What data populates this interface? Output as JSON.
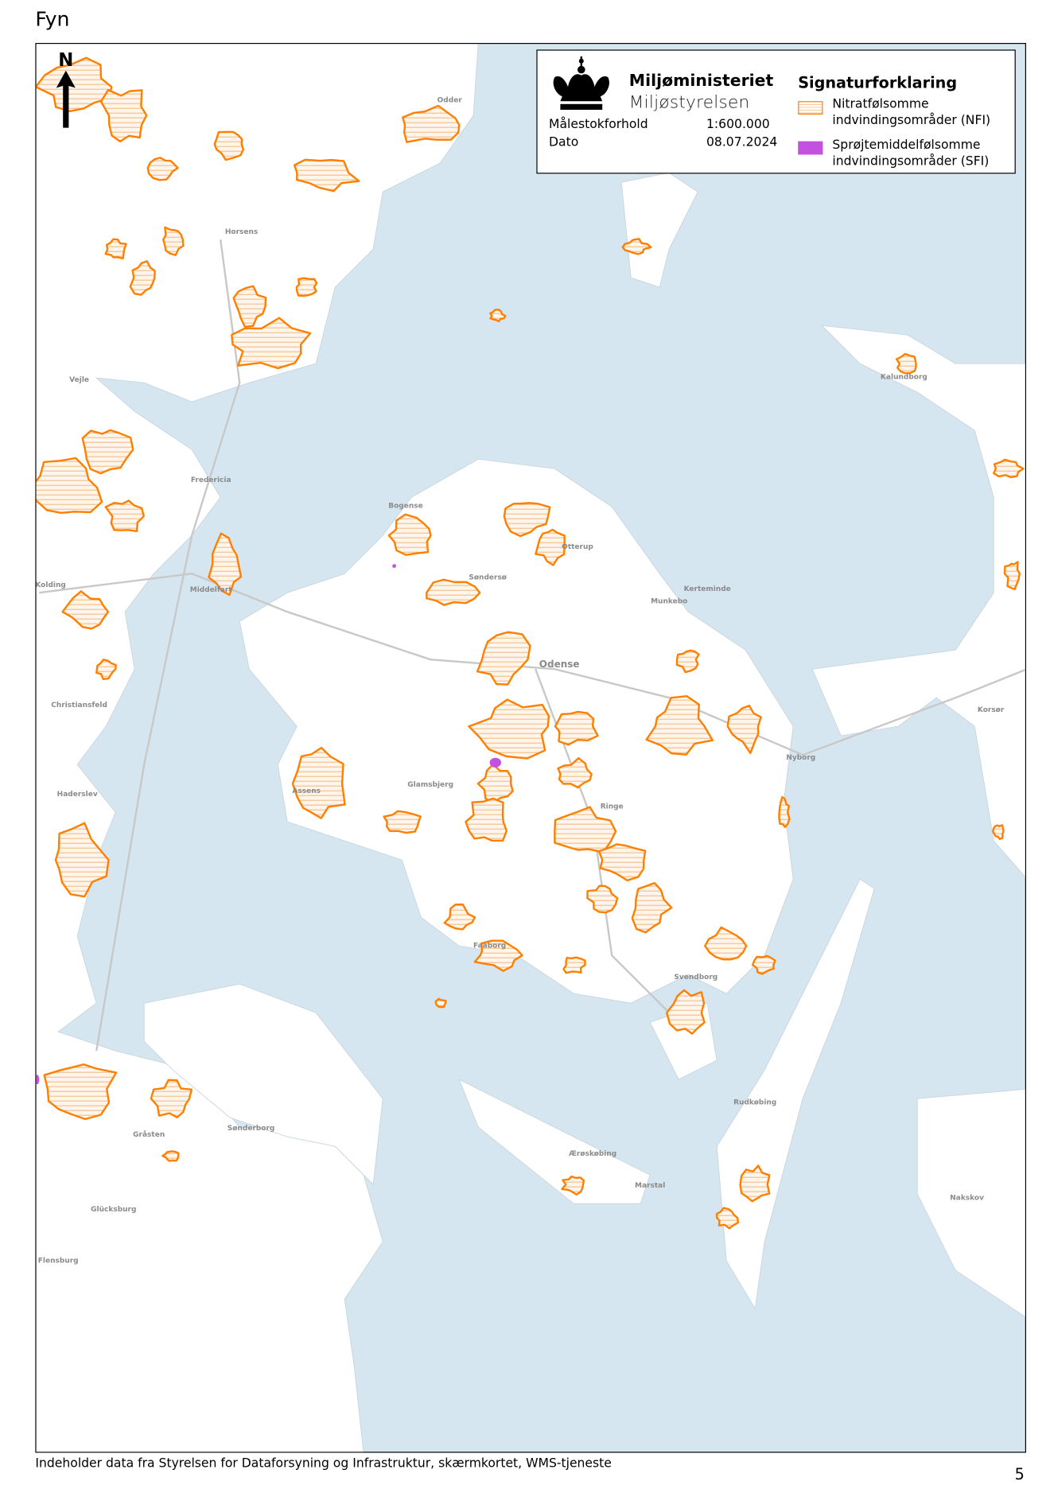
{
  "title": "Fyn",
  "north_label": "N",
  "legend": {
    "organization": "Miljøministeriet",
    "agency": "Miljøstyrelsen",
    "scale_label": "Målestokforhold",
    "scale_value": "1:600.000",
    "date_label": "Dato",
    "date_value": "08.07.2024",
    "heading": "Signaturforklaring",
    "items": [
      {
        "label_line1": "Nitratfølsomme",
        "label_line2": "indvindingsområder (NFI)",
        "color": "#ff7f00"
      },
      {
        "label_line1": "Sprøjtemiddelfølsomme",
        "label_line2": "indvindingsområder (SFI)",
        "color": "#c450e0"
      }
    ]
  },
  "map": {
    "sea_color": "#d6e6f0",
    "land_color": "#ffffff",
    "nfi_color": "#ff7f00",
    "sfi_color": "#c450e0",
    "places": [
      "Odense",
      "Horsens",
      "Vejle",
      "Fredericia",
      "Middelfart",
      "Kolding",
      "Haderslev",
      "Sønderborg",
      "Flensburg",
      "Nyborg",
      "Svendborg",
      "Faaborg",
      "Assens",
      "Bogense",
      "Otterup",
      "Kerteminde",
      "Ringe",
      "Kalundborg",
      "Korsør",
      "Nakskov",
      "Odder",
      "Christiansfeld",
      "Gråsten",
      "Glücksburg",
      "Rudkøbing",
      "Marstal",
      "Ærøskøbing",
      "Munkebo",
      "Søndersø",
      "Glamsbjerg"
    ]
  },
  "footer": "Indeholder data fra Styrelsen for Dataforsyning og Infrastruktur, skærmkortet, WMS-tjeneste",
  "page_number": "5"
}
